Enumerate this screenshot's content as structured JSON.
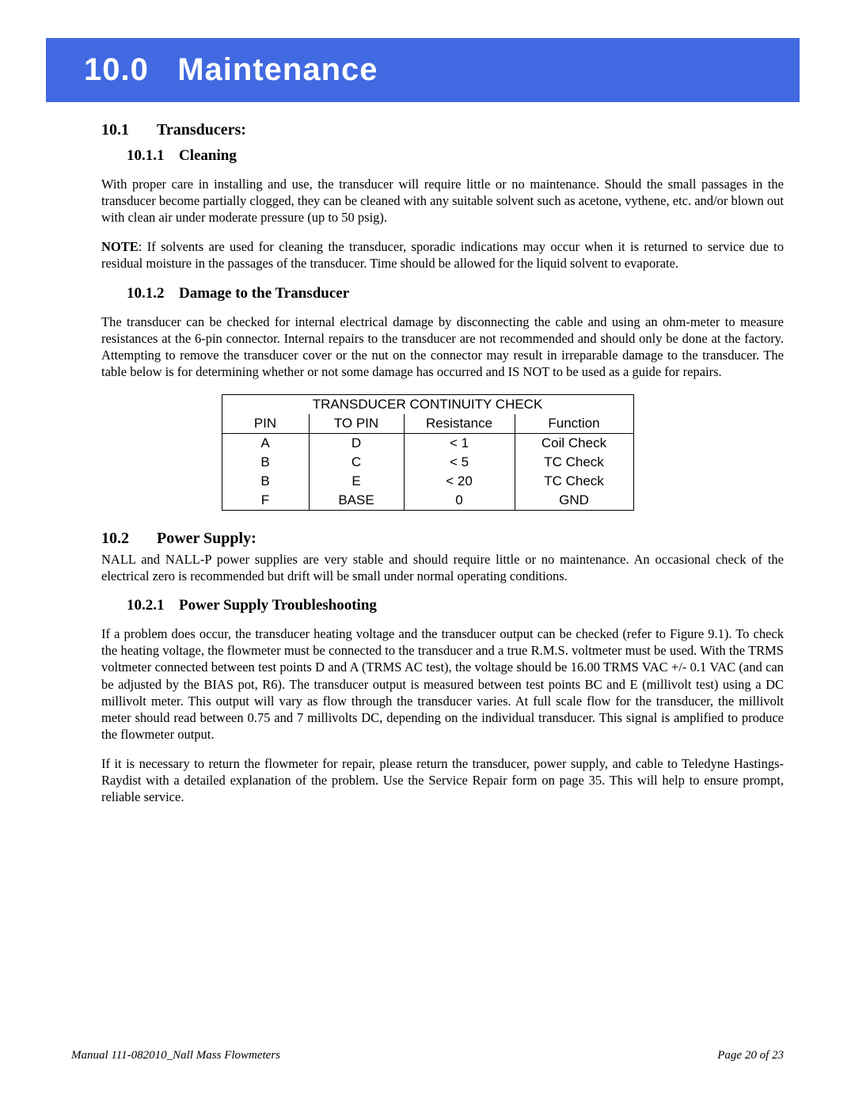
{
  "banner": {
    "number": "10.0",
    "title": "Maintenance"
  },
  "sec_10_1": {
    "num": "10.1",
    "title": "Transducers:"
  },
  "sec_10_1_1": {
    "num": "10.1.1",
    "title": "Cleaning"
  },
  "p_cleaning": "With proper care in installing and use, the transducer will require little or no maintenance.  Should the small passages in the transducer become partially clogged, they can be cleaned with any suitable solvent such as acetone, vythene, etc. and/or blown out with clean air under moderate pressure (up to 50 psig).",
  "note_label": "NOTE",
  "p_note": ":  If solvents are used for cleaning the transducer, sporadic indications may occur when it is returned to service due to residual moisture in the passages of the transducer.  Time should be allowed for the liquid solvent to evaporate.",
  "sec_10_1_2": {
    "num": "10.1.2",
    "title": "Damage to the Transducer"
  },
  "p_damage": "The transducer can be checked for internal electrical damage by disconnecting the cable and using an ohm-meter to measure resistances at the 6-pin connector.  Internal repairs to the transducer are not recommended and should only be done at the factory.  Attempting to remove the transducer cover or the nut on the connector may result in irreparable damage to the transducer.  The table below is for determining whether or not some damage has occurred and IS NOT to be used as a guide for repairs.",
  "table": {
    "title": "TRANSDUCER CONTINUITY CHECK",
    "columns": [
      "PIN",
      "TO PIN",
      "Resistance",
      "Function"
    ],
    "rows": [
      [
        "A",
        "D",
        "< 1",
        "Coil Check"
      ],
      [
        "B",
        "C",
        "< 5",
        "TC Check"
      ],
      [
        "B",
        "E",
        "< 20",
        "TC Check"
      ],
      [
        "F",
        "BASE",
        "0",
        "GND"
      ]
    ],
    "col_widths": [
      "110px",
      "120px",
      "140px",
      "150px"
    ]
  },
  "sec_10_2": {
    "num": "10.2",
    "title": "Power Supply:"
  },
  "p_ps": "NALL and NALL-P power supplies are very stable and should require little or no maintenance.  An occasional check of the electrical zero is recommended but drift will be small under normal operating conditions.",
  "sec_10_2_1": {
    "num": "10.2.1",
    "title": "Power Supply Troubleshooting"
  },
  "p_trouble1": "If a problem does occur, the transducer heating voltage and the transducer output can be checked (refer to Figure 9.1).  To check the heating voltage, the flowmeter must be connected to the transducer and a true R.M.S. voltmeter must be used.  With the TRMS voltmeter connected between test points D and A (TRMS AC test), the voltage should be 16.00 TRMS VAC +/- 0.1 VAC (and can be adjusted by the BIAS pot, R6).  The transducer output is measured between test points BC and E (millivolt test) using a DC millivolt meter.  This output will vary as flow through the transducer varies.  At full scale flow for the transducer, the millivolt meter should read between 0.75 and 7 millivolts DC, depending on the individual transducer.  This signal is amplified to produce the flowmeter output.",
  "p_trouble2": "If it is necessary to return the flowmeter for repair, please return the transducer, power supply, and cable to Teledyne Hastings-Raydist with a detailed explanation of the problem.  Use the Service Repair form on page 35.  This will help to ensure prompt, reliable service.",
  "footer": {
    "left": "Manual 111-082010_Nall Mass Flowmeters",
    "right": "Page 20 of 23"
  },
  "colors": {
    "banner_bg": "#4169e1",
    "banner_fg": "#ffffff",
    "text": "#000000",
    "page_bg": "#ffffff"
  }
}
